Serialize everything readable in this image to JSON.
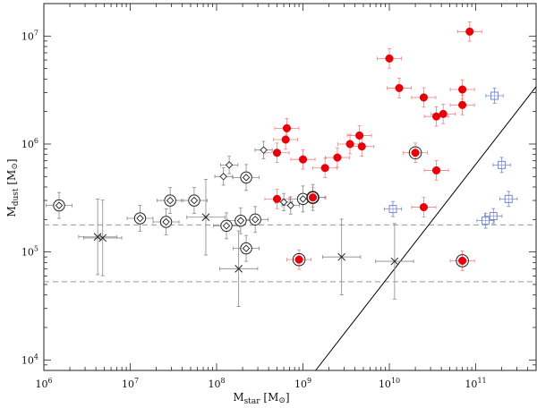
{
  "chart_data": {
    "type": "scatter",
    "xscale": "log",
    "yscale": "log",
    "xlim": [
      1000000,
      500000000000
    ],
    "ylim": [
      8000,
      20000000
    ],
    "xlabel": {
      "main": "M",
      "sub": "star",
      "unit": " [M",
      "sun": "⊙",
      "close": "]"
    },
    "ylabel": {
      "main": "M",
      "sub": "dust",
      "unit": " [M",
      "sun": "⊙",
      "close": "]"
    },
    "xticks": [
      {
        "value": 1000000,
        "base": "10",
        "exp": "6"
      },
      {
        "value": 10000000,
        "base": "10",
        "exp": "7"
      },
      {
        "value": 100000000,
        "base": "10",
        "exp": "8"
      },
      {
        "value": 1000000000,
        "base": "10",
        "exp": "9"
      },
      {
        "value": 10000000000,
        "base": "10",
        "exp": "10"
      },
      {
        "value": 100000000000,
        "base": "10",
        "exp": "11"
      }
    ],
    "yticks": [
      {
        "value": 10000,
        "base": "10",
        "exp": "4"
      },
      {
        "value": 100000,
        "base": "10",
        "exp": "5"
      },
      {
        "value": 1000000,
        "base": "10",
        "exp": "6"
      },
      {
        "value": 10000000,
        "base": "10",
        "exp": "7"
      }
    ],
    "hlines": [
      178000,
      53000
    ],
    "diagonal_line": [
      [
        1400000000,
        8000
      ],
      [
        500000000000,
        3400000
      ]
    ],
    "colors": {
      "filled": "#e8000b",
      "filled_err": "#f08080",
      "open_square": "#7788cc",
      "black": "#222222",
      "grey_err": "#888888",
      "dashed": "#999999"
    },
    "series": [
      {
        "name": "filled-circles",
        "marker": "filled-circle",
        "points": [
          [
            85000000000.0,
            11000000.0
          ],
          [
            10000000000.0,
            6200000.0
          ],
          [
            13000000000.0,
            3300000.0
          ],
          [
            25000000000.0,
            2700000.0
          ],
          [
            70000000000.0,
            3200000.0
          ],
          [
            70000000000.0,
            2300000.0
          ],
          [
            35000000000.0,
            1800000.0
          ],
          [
            42000000000.0,
            1900000.0
          ],
          [
            650000000.0,
            1400000.0
          ],
          [
            630000000.0,
            1100000.0
          ],
          [
            4500000000.0,
            1200000.0
          ],
          [
            4800000000.0,
            950000.0
          ],
          [
            3500000000.0,
            1000000.0
          ],
          [
            2500000000.0,
            750000.0
          ],
          [
            500000000.0,
            830000.0
          ],
          [
            1000000000.0,
            720000.0
          ],
          [
            1800000000.0,
            600000.0
          ],
          [
            20000000000.0,
            830000.0
          ],
          [
            35000000000.0,
            570000.0
          ],
          [
            500000000.0,
            310000.0
          ],
          [
            25000000000.0,
            260000.0
          ],
          [
            900000000.0,
            85000.0
          ],
          [
            70000000000.0,
            83000.0
          ],
          [
            1300000000.0,
            320000.0
          ]
        ]
      },
      {
        "name": "circled-filled",
        "marker": "ring",
        "points": [
          [
            20000000000.0,
            830000.0
          ],
          [
            900000000.0,
            85000.0
          ],
          [
            70000000000.0,
            83000.0
          ],
          [
            1300000000.0,
            320000.0
          ]
        ]
      },
      {
        "name": "open-circles-diamond",
        "marker": "open-circle-diamond",
        "points": [
          [
            1500000.0,
            270000.0
          ],
          [
            13000000.0,
            205000.0
          ],
          [
            26000000.0,
            190000.0
          ],
          [
            29000000.0,
            300000.0
          ],
          [
            55000000.0,
            300000.0
          ],
          [
            130000000.0,
            175000.0
          ],
          [
            190000000.0,
            195000.0
          ],
          [
            220000000.0,
            490000.0
          ],
          [
            220000000.0,
            108000.0
          ],
          [
            280000000.0,
            200000.0
          ],
          [
            1000000000.0,
            310000.0
          ],
          [
            1300000000.0,
            320000.0
          ]
        ]
      },
      {
        "name": "small-diamonds",
        "marker": "diamond",
        "points": [
          [
            140000000.0,
            640000.0
          ],
          [
            120000000.0,
            500000.0
          ],
          [
            350000000.0,
            880000.0
          ],
          [
            600000000.0,
            290000.0
          ],
          [
            720000000.0,
            270000.0
          ]
        ]
      },
      {
        "name": "crosses",
        "marker": "cross",
        "points": [
          [
            4200000.0,
            138000.0
          ],
          [
            4800000.0,
            135000.0
          ],
          [
            75000000.0,
            210000.0
          ],
          [
            180000000.0,
            70000.0
          ],
          [
            2800000000.0,
            90000.0
          ],
          [
            11500000000.0,
            82000.0
          ]
        ]
      },
      {
        "name": "open-squares",
        "marker": "open-square",
        "points": [
          [
            11000000000.0,
            250000.0
          ],
          [
            165000000000.0,
            2800000.0
          ],
          [
            200000000000.0,
            640000.0
          ],
          [
            240000000000.0,
            310000.0
          ],
          [
            130000000000.0,
            195000.0
          ],
          [
            160000000000.0,
            215000.0
          ]
        ]
      }
    ]
  }
}
